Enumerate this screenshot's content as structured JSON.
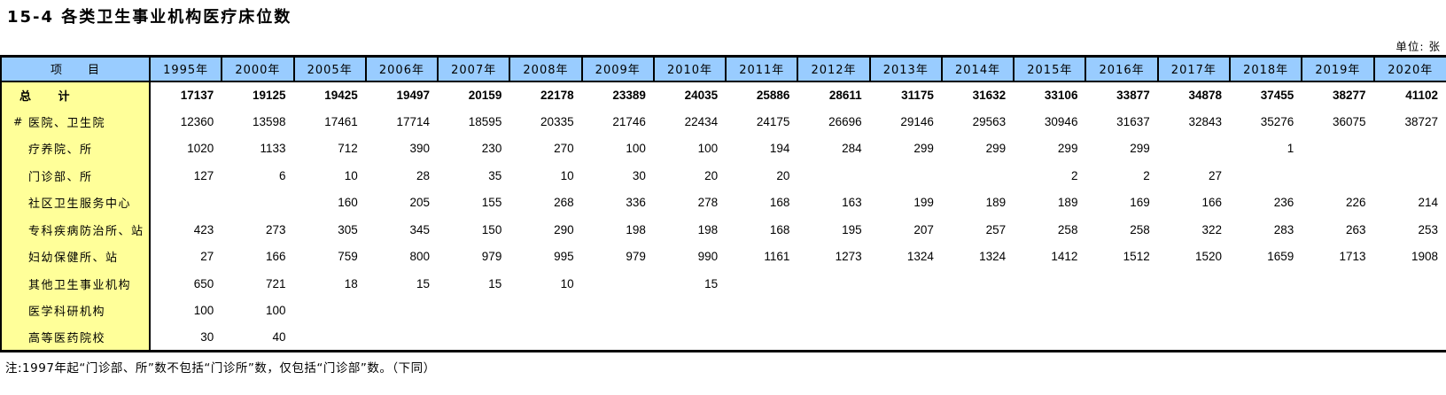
{
  "title": "15-4 各类卫生事业机构医疗床位数",
  "unit_label": "单位: 张",
  "table": {
    "item_header": "项　　目",
    "year_columns": [
      "1995年",
      "2000年",
      "2005年",
      "2006年",
      "2007年",
      "2008年",
      "2009年",
      "2010年",
      "2011年",
      "2012年",
      "2013年",
      "2014年",
      "2015年",
      "2016年",
      "2017年",
      "2018年",
      "2019年",
      "2020年"
    ],
    "rows": [
      {
        "label": "总　　计",
        "prefix": "",
        "bold": true,
        "values": [
          "17137",
          "19125",
          "19425",
          "19497",
          "20159",
          "22178",
          "23389",
          "24035",
          "25886",
          "28611",
          "31175",
          "31632",
          "33106",
          "33877",
          "34878",
          "37455",
          "38277",
          "41102"
        ]
      },
      {
        "label": "医院、卫生院",
        "prefix": "#",
        "bold": false,
        "values": [
          "12360",
          "13598",
          "17461",
          "17714",
          "18595",
          "20335",
          "21746",
          "22434",
          "24175",
          "26696",
          "29146",
          "29563",
          "30946",
          "31637",
          "32843",
          "35276",
          "36075",
          "38727"
        ]
      },
      {
        "label": "疗养院、所",
        "prefix": "",
        "bold": false,
        "values": [
          "1020",
          "1133",
          "712",
          "390",
          "230",
          "270",
          "100",
          "100",
          "194",
          "284",
          "299",
          "299",
          "299",
          "299",
          "",
          "1",
          "",
          ""
        ]
      },
      {
        "label": "门诊部、所",
        "prefix": "",
        "bold": false,
        "values": [
          "127",
          "6",
          "10",
          "28",
          "35",
          "10",
          "30",
          "20",
          "20",
          "",
          "",
          "",
          "2",
          "2",
          "27",
          "",
          "",
          ""
        ]
      },
      {
        "label": "社区卫生服务中心",
        "prefix": "",
        "bold": false,
        "values": [
          "",
          "",
          "160",
          "205",
          "155",
          "268",
          "336",
          "278",
          "168",
          "163",
          "199",
          "189",
          "189",
          "169",
          "166",
          "236",
          "226",
          "214"
        ]
      },
      {
        "label": "专科疾病防治所、站",
        "prefix": "",
        "bold": false,
        "values": [
          "423",
          "273",
          "305",
          "345",
          "150",
          "290",
          "198",
          "198",
          "168",
          "195",
          "207",
          "257",
          "258",
          "258",
          "322",
          "283",
          "263",
          "253"
        ]
      },
      {
        "label": "妇幼保健所、站",
        "prefix": "",
        "bold": false,
        "values": [
          "27",
          "166",
          "759",
          "800",
          "979",
          "995",
          "979",
          "990",
          "1161",
          "1273",
          "1324",
          "1324",
          "1412",
          "1512",
          "1520",
          "1659",
          "1713",
          "1908"
        ]
      },
      {
        "label": "其他卫生事业机构",
        "prefix": "",
        "bold": false,
        "values": [
          "650",
          "721",
          "18",
          "15",
          "15",
          "10",
          "",
          "15",
          "",
          "",
          "",
          "",
          "",
          "",
          "",
          "",
          "",
          ""
        ]
      },
      {
        "label": "医学科研机构",
        "prefix": "",
        "bold": false,
        "values": [
          "100",
          "100",
          "",
          "",
          "",
          "",
          "",
          "",
          "",
          "",
          "",
          "",
          "",
          "",
          "",
          "",
          "",
          ""
        ]
      },
      {
        "label": "高等医药院校",
        "prefix": "",
        "bold": false,
        "values": [
          "30",
          "40",
          "",
          "",
          "",
          "",
          "",
          "",
          "",
          "",
          "",
          "",
          "",
          "",
          "",
          "",
          "",
          ""
        ]
      }
    ]
  },
  "footnote": "注:1997年起“门诊部、所”数不包括“门诊所”数，仅包括“门诊部”数。（下同）",
  "colors": {
    "header_bg": "#99CCFF",
    "item_column_bg": "#FFFF99",
    "border": "#000000"
  }
}
